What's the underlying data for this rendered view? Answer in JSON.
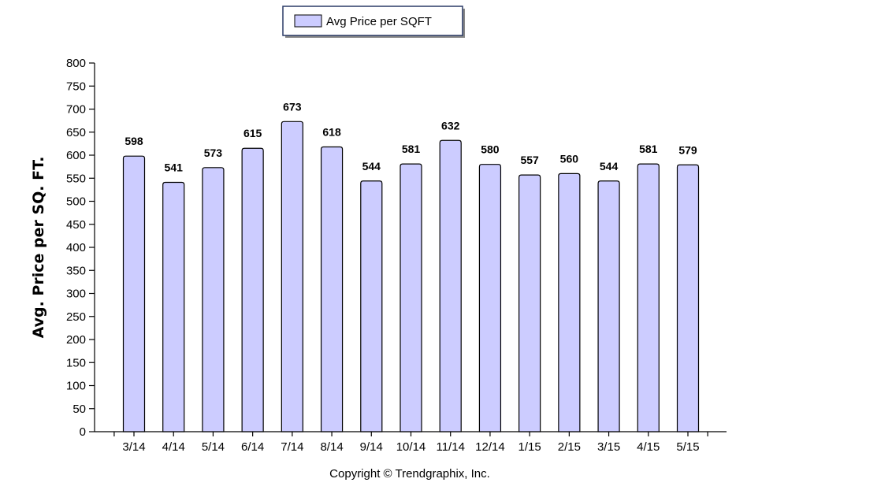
{
  "chart_data": {
    "type": "bar",
    "categories": [
      "3/14",
      "4/14",
      "5/14",
      "6/14",
      "7/14",
      "8/14",
      "9/14",
      "10/14",
      "11/14",
      "12/14",
      "1/15",
      "2/15",
      "3/15",
      "4/15",
      "5/15"
    ],
    "series": [
      {
        "name": "Avg Price per SQFT",
        "values": [
          598,
          541,
          573,
          615,
          673,
          618,
          544,
          581,
          632,
          580,
          557,
          560,
          544,
          581,
          579
        ]
      }
    ],
    "ylabel": "Avg. Price per SQ. FT.",
    "xlabel": "",
    "ylim": [
      0,
      800
    ],
    "yticks": [
      0,
      50,
      100,
      150,
      200,
      250,
      300,
      350,
      400,
      450,
      500,
      550,
      600,
      650,
      700,
      750,
      800
    ],
    "data_labels": true,
    "grid": false,
    "legend_position": "top",
    "bar_color": "#ccccff",
    "bar_edge_color": "#000000"
  },
  "legend": {
    "label": "Avg Price per SQFT"
  },
  "copyright": "Copyright © Trendgraphix, Inc."
}
